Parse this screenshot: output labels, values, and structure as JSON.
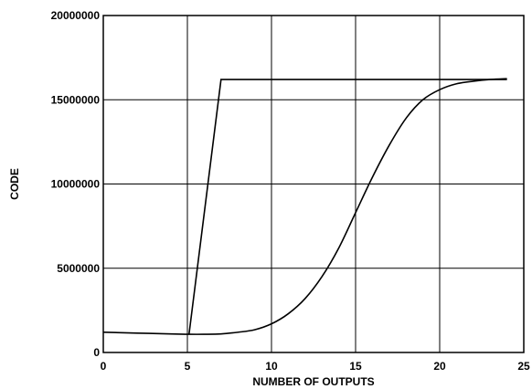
{
  "chart_data": {
    "type": "line",
    "title": "",
    "xlabel": "NUMBER OF OUTPUTS",
    "ylabel": "CODE",
    "xlim": [
      0,
      25
    ],
    "ylim": [
      0,
      20000000
    ],
    "xticks": [
      0,
      5,
      10,
      15,
      20,
      25
    ],
    "yticks": [
      0,
      5000000,
      10000000,
      15000000,
      20000000
    ],
    "xtick_labels": [
      "0",
      "5",
      "10",
      "15",
      "20",
      "25"
    ],
    "ytick_labels": [
      "0",
      "5000000",
      "10000000",
      "15000000",
      "20000000"
    ],
    "grid": true,
    "legend": "none",
    "colors": {
      "line": "#000000",
      "grid": "#000000",
      "background": "#ffffff"
    },
    "series": [
      {
        "x": [
          5.1,
          7.0,
          24.0
        ],
        "y": [
          1100000,
          16200000,
          16200000
        ]
      },
      {
        "x": [
          0,
          2,
          4,
          5.1,
          6,
          7,
          8,
          9,
          10,
          11,
          12,
          13,
          14,
          15,
          16,
          17,
          18,
          19,
          20,
          21,
          22,
          23,
          24
        ],
        "y": [
          1200000,
          1150000,
          1100000,
          1080000,
          1080000,
          1100000,
          1200000,
          1350000,
          1700000,
          2300000,
          3200000,
          4500000,
          6200000,
          8300000,
          10400000,
          12300000,
          13900000,
          15000000,
          15600000,
          15950000,
          16100000,
          16200000,
          16250000
        ]
      }
    ]
  }
}
